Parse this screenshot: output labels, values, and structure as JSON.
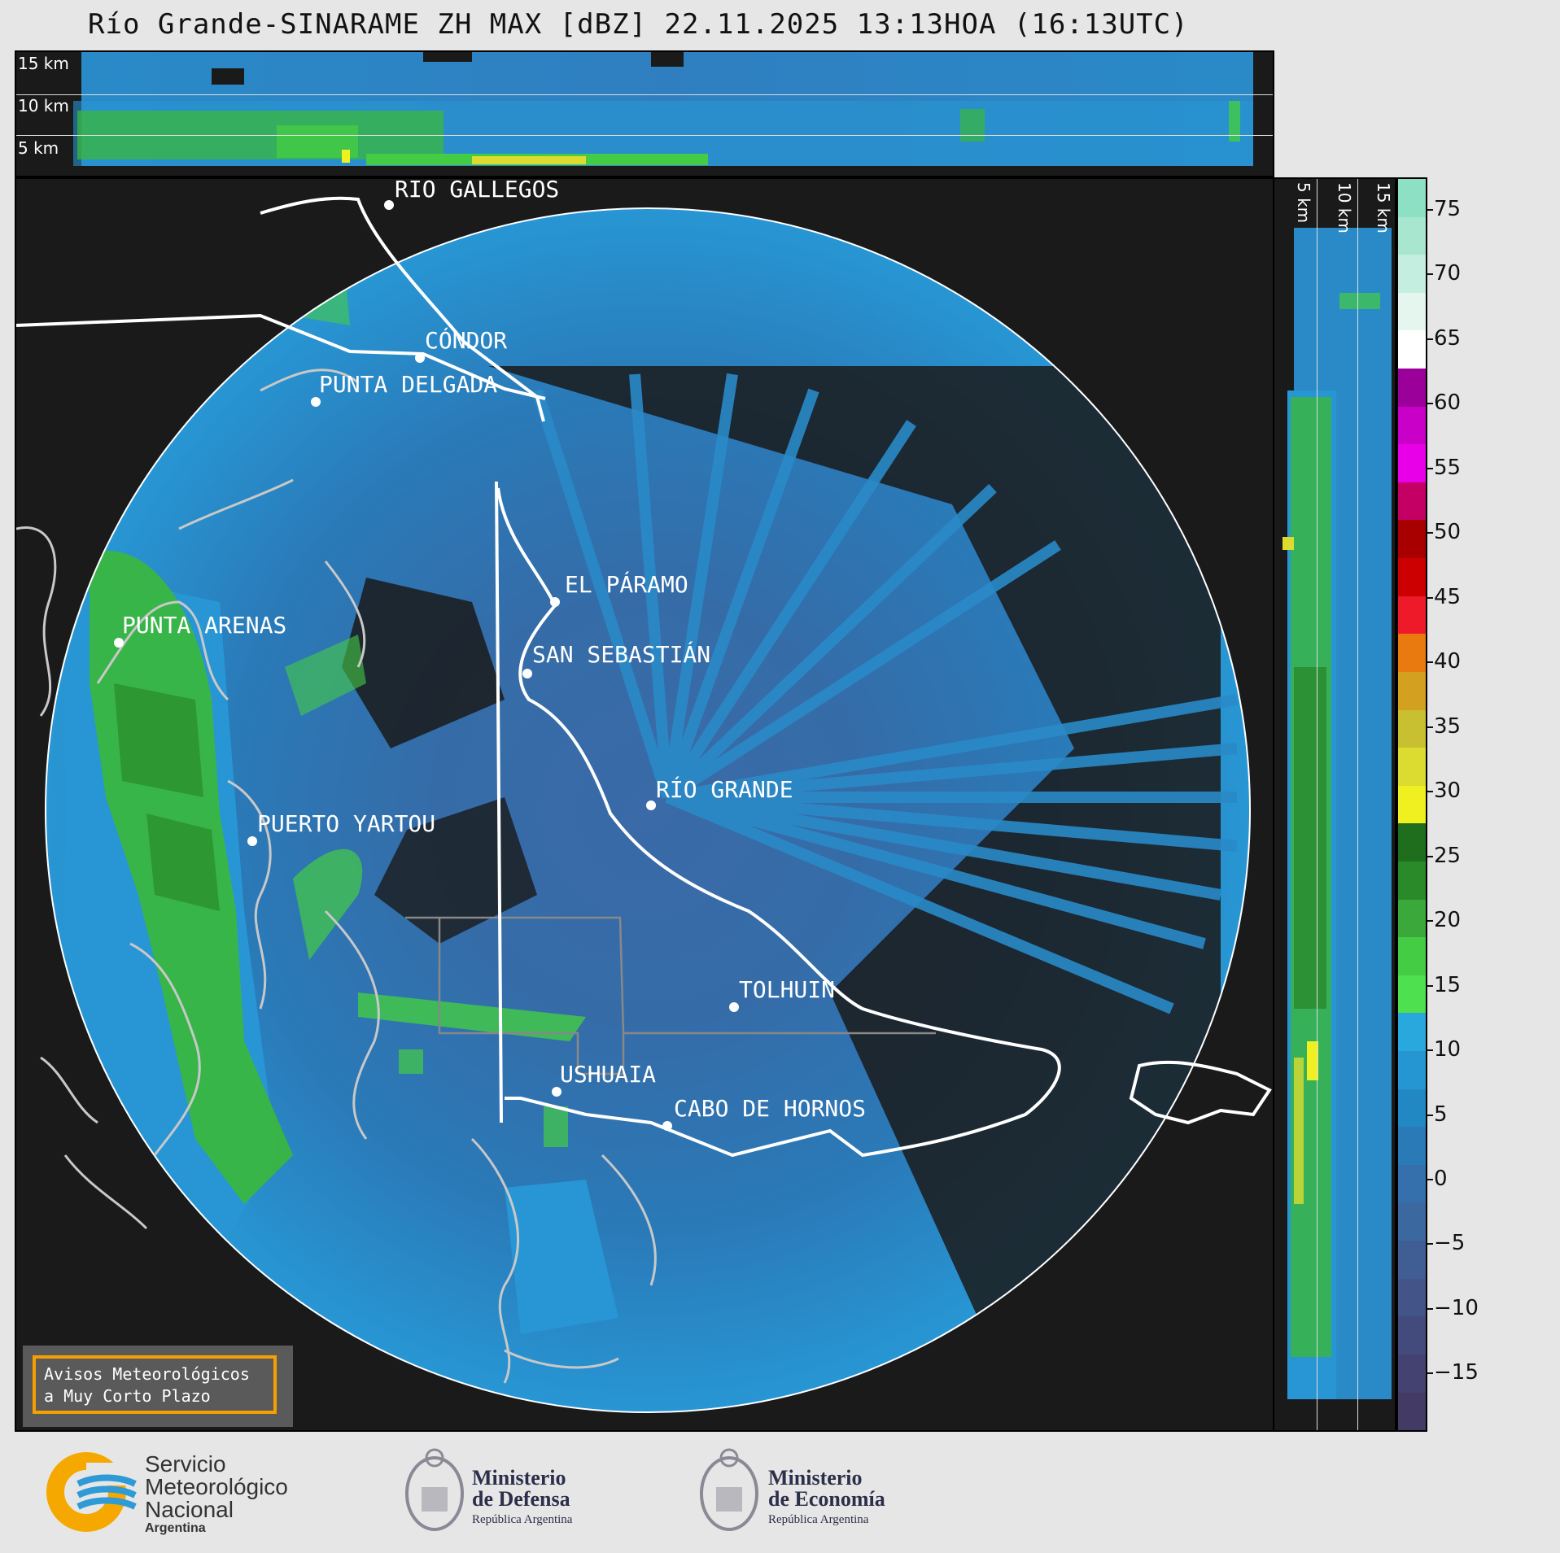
{
  "title": "Río Grande-SINARAME ZH MAX [dBZ] 22.11.2025 13:13HOA (16:13UTC)",
  "top_panel": {
    "labels": [
      "15 km",
      "10 km",
      "5 km"
    ]
  },
  "side_panel": {
    "labels": [
      "5 km",
      "10 km",
      "15 km"
    ]
  },
  "cities": [
    {
      "name": "RÍO GALLEGOS"
    },
    {
      "name": "CÓNDOR"
    },
    {
      "name": "PUNTA DELGADA"
    },
    {
      "name": "EL PÁRAMO"
    },
    {
      "name": "SAN SEBASTIÁN"
    },
    {
      "name": "PUNTA ARENAS"
    },
    {
      "name": "RÍO GRANDE"
    },
    {
      "name": "PUERTO YARTOU"
    },
    {
      "name": "TOLHUIN"
    },
    {
      "name": "USHUAIA"
    },
    {
      "name": "CABO DE HORNOS"
    }
  ],
  "colorbar": {
    "unit": "dBZ",
    "ticks": [
      "75",
      "70",
      "65",
      "60",
      "55",
      "50",
      "45",
      "40",
      "35",
      "30",
      "25",
      "20",
      "15",
      "10",
      "5",
      "0",
      "−5",
      "−10",
      "−15"
    ],
    "colors": [
      "#8ee0c4",
      "#a8e6cf",
      "#c4eedf",
      "#e4f6ee",
      "#ffffff",
      "#9b009b",
      "#c800c8",
      "#e800e8",
      "#c40064",
      "#a80000",
      "#cc0000",
      "#ee1a2a",
      "#e87a10",
      "#d4a020",
      "#c8c030",
      "#dcdc30",
      "#f0f020",
      "#1e6e1e",
      "#2a8a2a",
      "#3aa83a",
      "#44cc44",
      "#4ee04e",
      "#28a8dc",
      "#2596d2",
      "#2288c4",
      "#2a7ab8",
      "#3570ac",
      "#3c68a0",
      "#405e94",
      "#425488",
      "#434a7c",
      "#434270",
      "#433a66"
    ]
  },
  "warning_box": {
    "line1": "Avisos Meteorológicos",
    "line2": "a Muy Corto Plazo"
  },
  "logos": {
    "smn": {
      "line1": "Servicio",
      "line2": "Meteorológico",
      "line3": "Nacional",
      "line4": "Argentina"
    },
    "defensa": {
      "line1": "Ministerio",
      "line2": "de Defensa",
      "line3": "República Argentina"
    },
    "economia": {
      "line1": "Ministerio",
      "line2": "de Economía",
      "line3": "República Argentina"
    }
  }
}
